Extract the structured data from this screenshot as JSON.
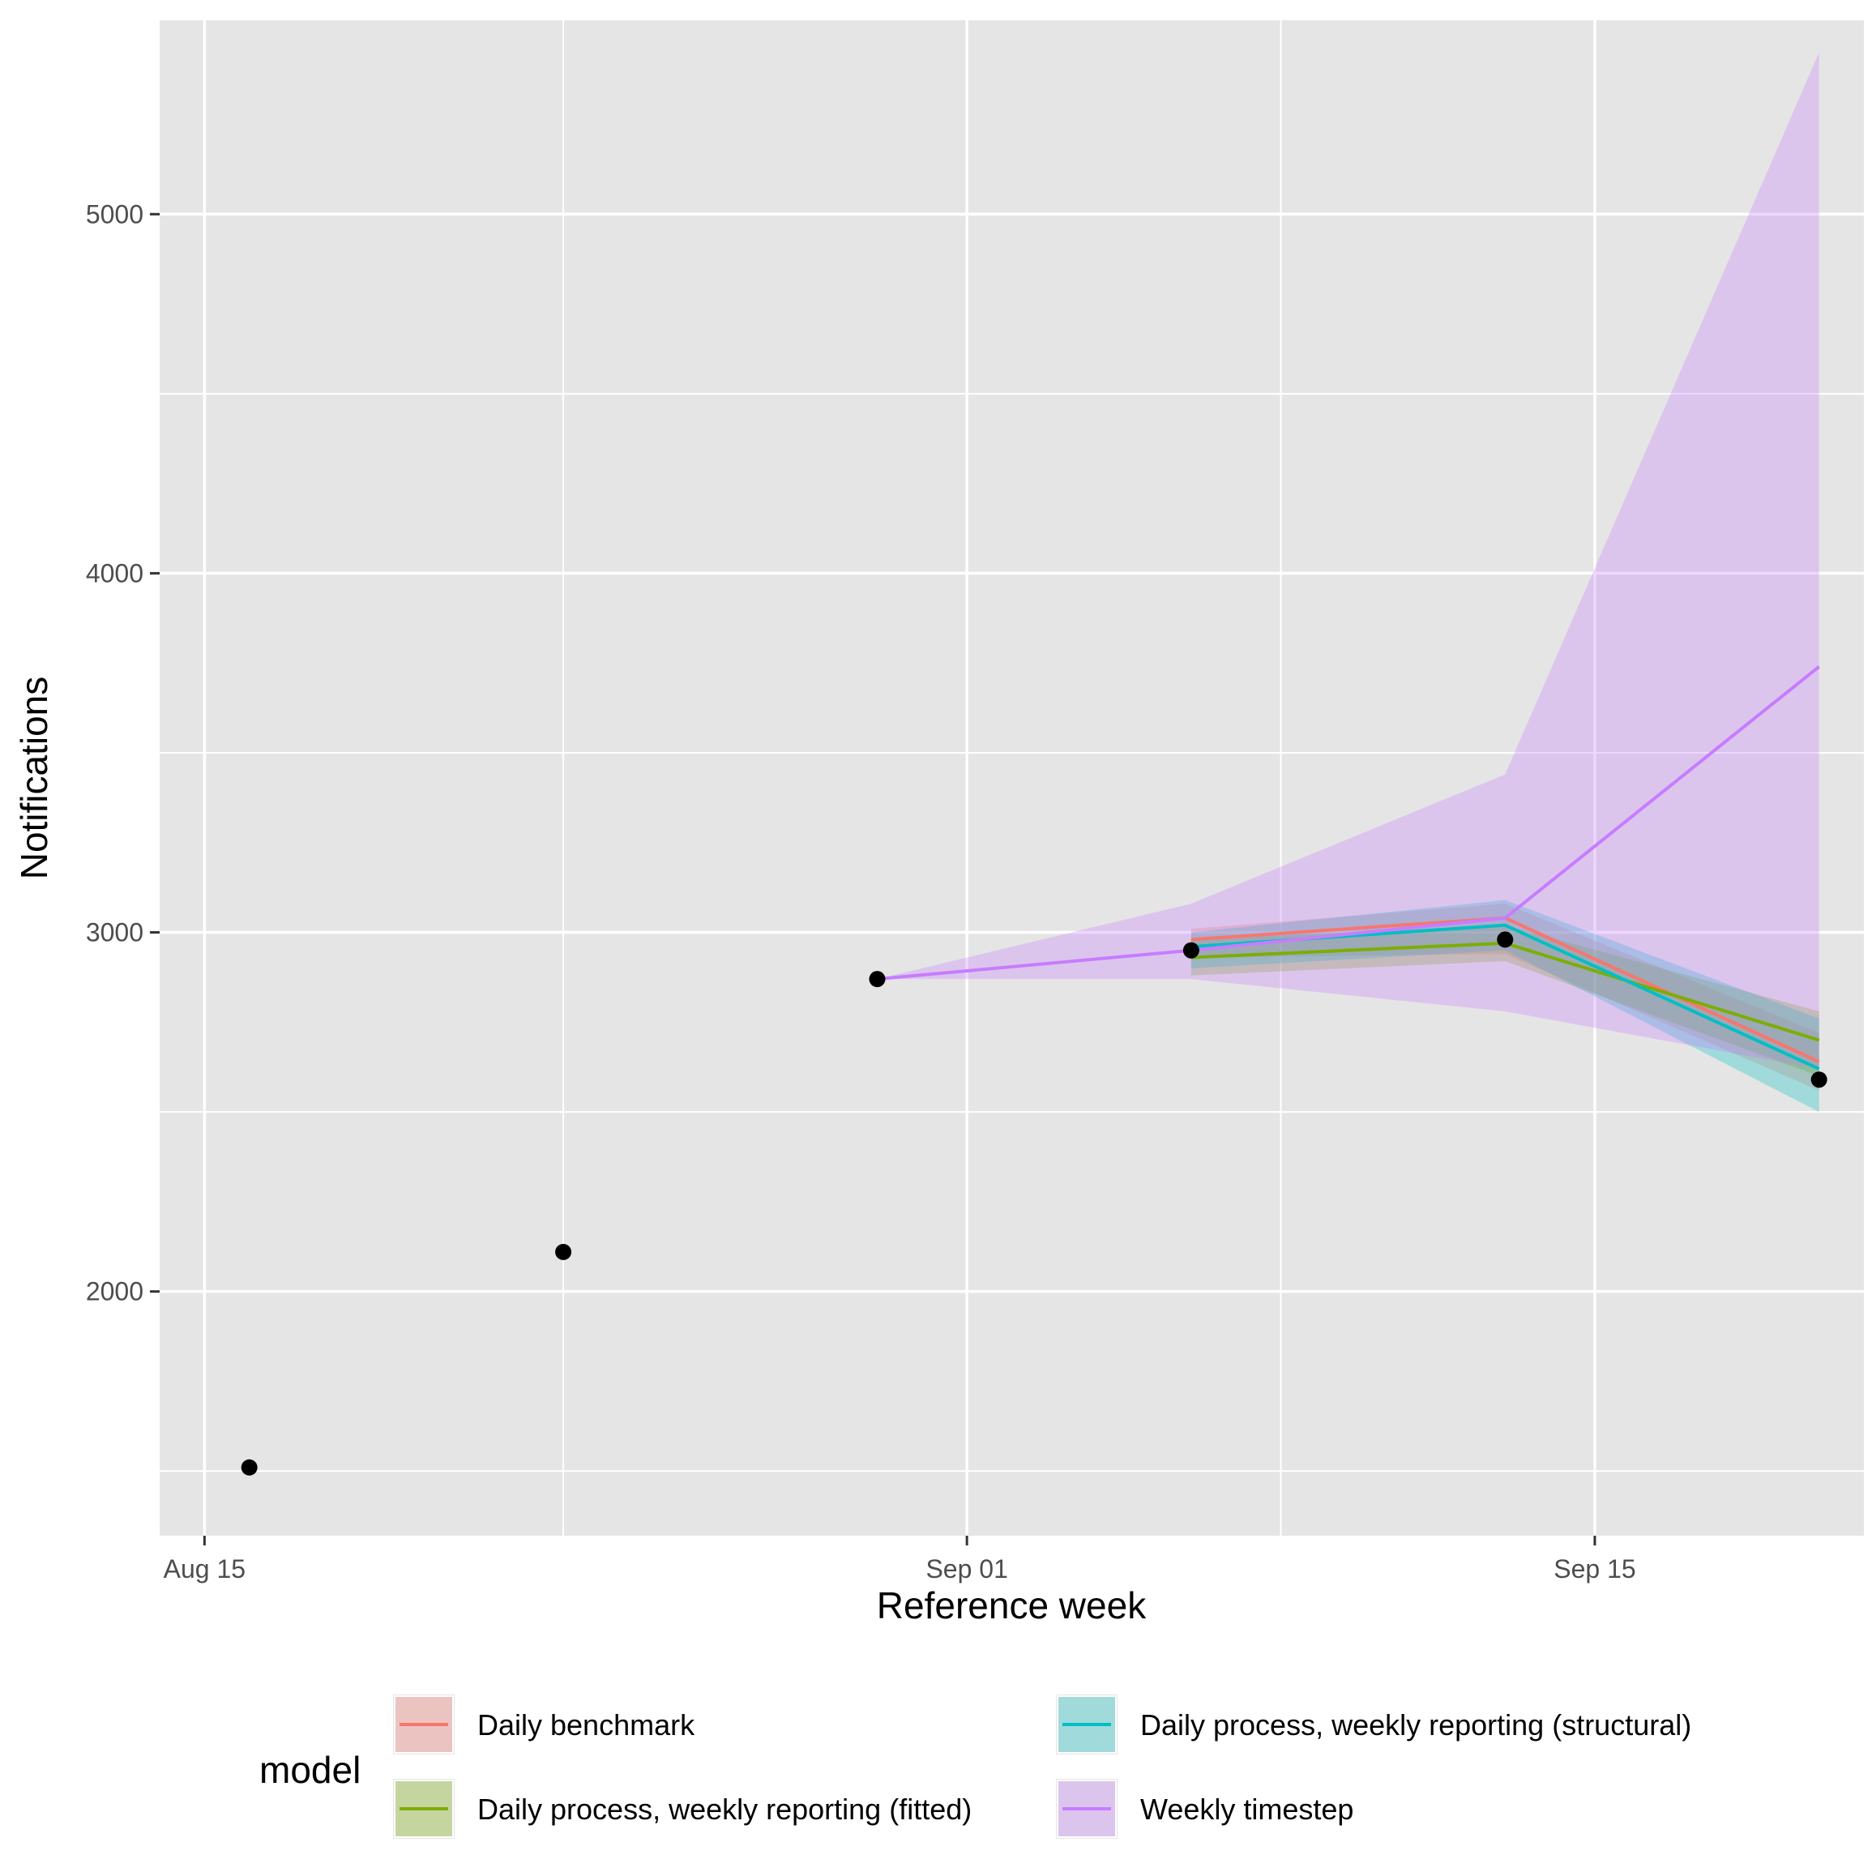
{
  "chart_data": {
    "type": "line",
    "title": "",
    "xlabel": "Reference week",
    "ylabel": "Notifications",
    "x_axis": {
      "type": "date",
      "range": [
        "2020-08-14",
        "2020-09-21"
      ],
      "ticks": [
        {
          "date": "2020-08-15",
          "label": "Aug 15"
        },
        {
          "date": "2020-09-01",
          "label": "Sep 01"
        },
        {
          "date": "2020-09-15",
          "label": "Sep 15"
        }
      ],
      "minor_ticks": [
        "2020-08-23",
        "2020-09-08"
      ]
    },
    "y_axis": {
      "range": [
        1320,
        5540
      ],
      "ticks": [
        {
          "value": 2000,
          "label": "2000"
        },
        {
          "value": 3000,
          "label": "3000"
        },
        {
          "value": 4000,
          "label": "4000"
        },
        {
          "value": 5000,
          "label": "5000"
        }
      ],
      "minor_ticks": [
        1500,
        2500,
        3500,
        4500
      ]
    },
    "grid": true,
    "observed": {
      "x": [
        "2020-08-16",
        "2020-08-23",
        "2020-08-30",
        "2020-09-06",
        "2020-09-13",
        "2020-09-20"
      ],
      "y": [
        1510,
        2110,
        2870,
        2950,
        2980,
        2590
      ],
      "color": "#000000"
    },
    "series": [
      {
        "name": "Daily benchmark",
        "color": "#F8766D",
        "x": [
          "2020-09-06",
          "2020-09-13",
          "2020-09-20"
        ],
        "y": [
          2980,
          3040,
          2640
        ],
        "lower": [
          2930,
          2940,
          2560
        ],
        "upper": [
          3010,
          3080,
          2720
        ]
      },
      {
        "name": "Daily process, weekly reporting (fitted)",
        "color": "#7CAE00",
        "x": [
          "2020-09-06",
          "2020-09-13",
          "2020-09-20"
        ],
        "y": [
          2930,
          2970,
          2700
        ],
        "lower": [
          2880,
          2920,
          2600
        ],
        "upper": [
          2980,
          3020,
          2780
        ]
      },
      {
        "name": "Daily process, weekly reporting (structural)",
        "color": "#00BFC4",
        "x": [
          "2020-09-06",
          "2020-09-13",
          "2020-09-20"
        ],
        "y": [
          2960,
          3020,
          2620
        ],
        "lower": [
          2900,
          2950,
          2500
        ],
        "upper": [
          3000,
          3090,
          2760
        ]
      },
      {
        "name": "Weekly timestep",
        "color": "#C77CFF",
        "x": [
          "2020-08-30",
          "2020-09-06",
          "2020-09-13",
          "2020-09-20"
        ],
        "y": [
          2870,
          2950,
          3040,
          3740
        ],
        "lower": [
          2870,
          2870,
          2780,
          2620
        ],
        "upper": [
          2870,
          3080,
          3440,
          5450
        ]
      }
    ],
    "legend": {
      "title": "model",
      "position": "bottom",
      "entries": [
        "Daily benchmark",
        "Daily process, weekly reporting (structural)",
        "Daily process, weekly reporting (fitted)",
        "Weekly timestep"
      ]
    },
    "colors": {
      "panel_background": "#E5E5E5",
      "grid": "#FFFFFF",
      "tick_text": "#4D4D4D",
      "axis_ticks": "#333333"
    }
  }
}
